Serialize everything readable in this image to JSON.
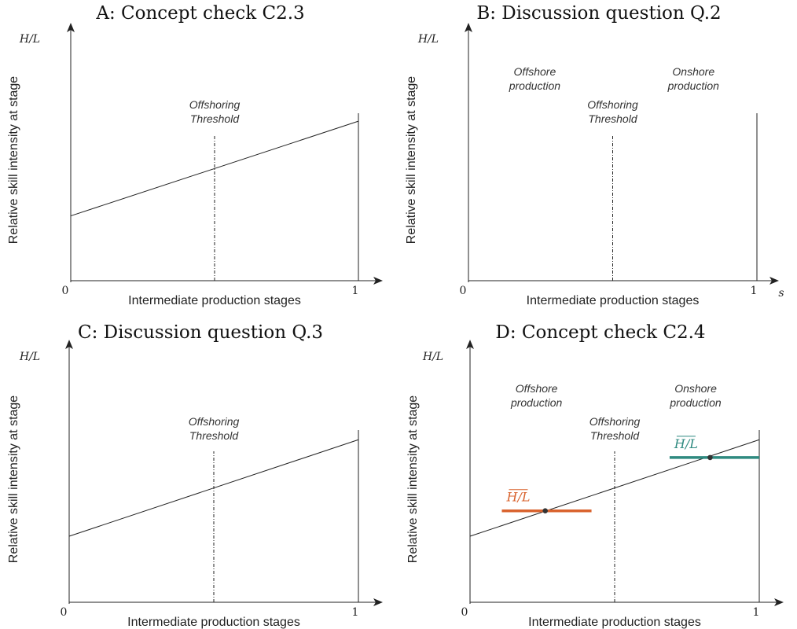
{
  "colors": {
    "axis": "#222222",
    "line": "#222222",
    "offshore": "#d9632e",
    "onshore": "#2f8a80",
    "point": "#333333"
  },
  "chart_data": [
    {
      "type": "line",
      "title": "A: Concept check C2.3",
      "xlabel": "Intermediate production stages",
      "ylabel": "Relative skill intensity at stage",
      "y_axis_var": "H/L",
      "x_axis_var": "",
      "x_ticks": [
        "0",
        "1"
      ],
      "xlim": [
        0,
        1
      ],
      "ylim": [
        0,
        1
      ],
      "threshold": {
        "x": 0.5,
        "label": [
          "Offshoring",
          "Threshold"
        ]
      },
      "series": [
        {
          "x": [
            0,
            1
          ],
          "y": [
            0.26,
            0.64
          ]
        }
      ],
      "boundary_x": 1,
      "region_labels": [],
      "averages": []
    },
    {
      "type": "line",
      "title": "B: Discussion question Q.2",
      "xlabel": "Intermediate production stages",
      "ylabel": "Relative skill intensity at stage",
      "y_axis_var": "H/L",
      "x_axis_var": "s",
      "x_ticks": [
        "0",
        "1"
      ],
      "xlim": [
        0,
        1
      ],
      "ylim": [
        0,
        1
      ],
      "threshold": {
        "x": 0.5,
        "label": [
          "Offshoring",
          "Threshold"
        ]
      },
      "series": [],
      "boundary_x": 1,
      "region_labels": [
        {
          "lines": [
            "Offshore",
            "production"
          ],
          "color": "offshore"
        },
        {
          "lines": [
            "Onshore",
            "production"
          ],
          "color": "onshore"
        }
      ],
      "averages": []
    },
    {
      "type": "line",
      "title": "C: Discussion question Q.3",
      "xlabel": "Intermediate production stages",
      "ylabel": "Relative skill intensity at stage",
      "y_axis_var": "H/L",
      "x_axis_var": "",
      "x_ticks": [
        "0",
        "1"
      ],
      "xlim": [
        0,
        1
      ],
      "ylim": [
        0,
        1
      ],
      "threshold": {
        "x": 0.5,
        "label": [
          "Offshoring",
          "Threshold"
        ]
      },
      "series": [
        {
          "x": [
            0,
            1
          ],
          "y": [
            0.26,
            0.64
          ]
        }
      ],
      "boundary_x": 1,
      "region_labels": [],
      "averages": []
    },
    {
      "type": "line",
      "title": "D: Concept check C2.4",
      "xlabel": "Intermediate production stages",
      "ylabel": "Relative skill intensity at stage",
      "y_axis_var": "H/L",
      "x_axis_var": "",
      "x_ticks": [
        "0",
        "1"
      ],
      "xlim": [
        0,
        1
      ],
      "ylim": [
        0,
        1
      ],
      "threshold": {
        "x": 0.5,
        "label": [
          "Offshoring",
          "Threshold"
        ]
      },
      "series": [
        {
          "x": [
            0,
            1
          ],
          "y": [
            0.26,
            0.64
          ]
        }
      ],
      "boundary_x": 1,
      "region_labels": [
        {
          "lines": [
            "Offshore",
            "production"
          ],
          "color": "offshore"
        },
        {
          "lines": [
            "Onshore",
            "production"
          ],
          "color": "onshore"
        }
      ],
      "averages": [
        {
          "label": "H/L",
          "color": "offshore",
          "x": 0.26,
          "y": 0.36,
          "x_from": 0.11,
          "x_to": 0.42
        },
        {
          "label": "H/L",
          "color": "onshore",
          "x": 0.83,
          "y": 0.57,
          "x_from": 0.69,
          "x_to": 1.0
        }
      ]
    }
  ]
}
